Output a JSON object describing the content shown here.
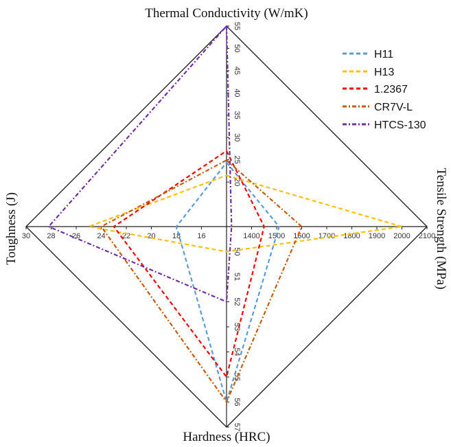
{
  "chart_data": {
    "type": "radar",
    "axes": [
      {
        "key": "top",
        "label": "Thermal Conductivity (W/mK)",
        "tick_values": [
          20,
          25,
          30,
          35,
          40,
          45,
          50,
          55
        ],
        "tick_labels": [
          "20",
          "25",
          "30",
          "35",
          "40",
          "45",
          "50",
          "55"
        ],
        "range": [
          10,
          55
        ]
      },
      {
        "key": "right",
        "label": "Tensile Strength (MPa)",
        "tick_values": [
          1400,
          1500,
          1600,
          1700,
          1800,
          1900,
          2000,
          2100
        ],
        "tick_labels": [
          "1400",
          "1500",
          "1600",
          "1700",
          "1800",
          "1900",
          "2000",
          "2100"
        ],
        "range": [
          1300,
          2100
        ]
      },
      {
        "key": "bottom",
        "label": "Hardness (HRC)",
        "tick_values": [
          50,
          51,
          52,
          53,
          54,
          55,
          56,
          57
        ],
        "tick_labels": [
          "50",
          "51",
          "52",
          "53",
          "54",
          "55",
          "56",
          "57"
        ],
        "range": [
          49,
          57
        ]
      },
      {
        "key": "left",
        "label": "Toughness (J)",
        "tick_values": [
          16,
          18,
          20,
          22,
          24,
          26,
          28,
          30
        ],
        "tick_labels": [
          "16",
          "18",
          "20",
          "22",
          "24",
          "26",
          "28",
          "30"
        ],
        "range": [
          14,
          30
        ]
      }
    ],
    "series": [
      {
        "name": "H11",
        "color": "#5b9bd5",
        "values": {
          "top": 24.4,
          "right": 1510,
          "bottom": 56,
          "left": 18
        }
      },
      {
        "name": "H13",
        "color": "#ffc000",
        "values": {
          "top": 21.5,
          "right": 2000,
          "bottom": 50,
          "left": 25
        }
      },
      {
        "name": "1.2367",
        "color": "#ff0000",
        "values": {
          "top": 27,
          "right": 1450,
          "bottom": 55,
          "left": 23
        }
      },
      {
        "name": "CR7V-L",
        "color": "#c55a11",
        "values": {
          "top": 24.9,
          "right": 1600,
          "bottom": 56,
          "left": 24
        }
      },
      {
        "name": "HTCS-130",
        "color": "#7030a0",
        "values": {
          "top": 55,
          "right": 1320,
          "bottom": 52,
          "left": 28.2
        }
      }
    ],
    "legend_position": "top-right",
    "grid": false
  }
}
